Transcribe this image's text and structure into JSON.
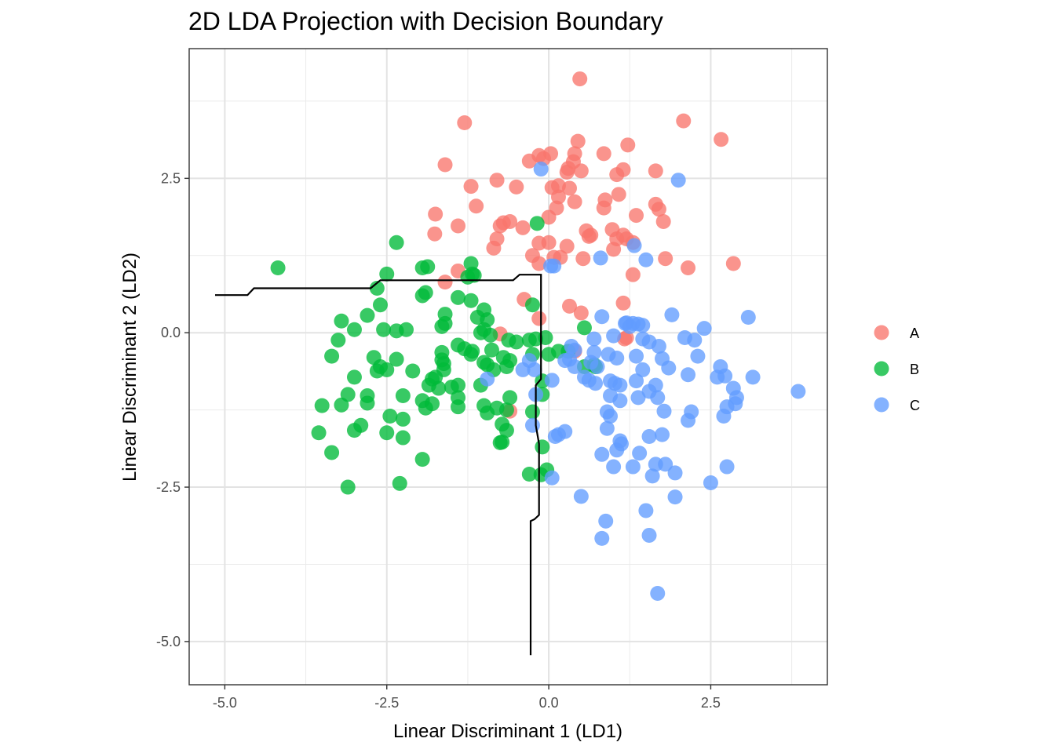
{
  "chart_data": {
    "type": "scatter",
    "title": "2D LDA Projection with Decision Boundary",
    "xlabel": "Linear Discriminant 1 (LD1)",
    "ylabel": "Linear Discriminant 2 (LD2)",
    "xlim": [
      -5.55,
      4.3
    ],
    "ylim": [
      -5.7,
      4.6
    ],
    "xticks": [
      -5.0,
      -2.5,
      0.0,
      2.5
    ],
    "yticks": [
      -5.0,
      -2.5,
      0.0,
      2.5
    ],
    "xtick_labels": [
      "-5.0",
      "-2.5",
      "0.0",
      "2.5"
    ],
    "ytick_labels": [
      "-5.0",
      "-2.5",
      "0.0",
      "2.5"
    ],
    "x_minor": [
      -3.75,
      -1.25,
      1.25,
      3.75
    ],
    "y_minor": [
      -3.75,
      -1.25,
      1.25,
      3.75
    ],
    "grid": true,
    "legend_position": "right",
    "series": [
      {
        "name": "A",
        "color": "#F8766D",
        "points": [
          [
            0.48,
            4.11
          ],
          [
            -1.3,
            3.4
          ],
          [
            2.08,
            3.43
          ],
          [
            2.66,
            3.13
          ],
          [
            0.45,
            3.1
          ],
          [
            1.22,
            3.04
          ],
          [
            0.85,
            2.9
          ],
          [
            0.4,
            2.9
          ],
          [
            -0.15,
            2.87
          ],
          [
            0.03,
            2.9
          ],
          [
            -0.3,
            2.78
          ],
          [
            0.38,
            2.77
          ],
          [
            0.5,
            2.62
          ],
          [
            1.05,
            2.56
          ],
          [
            0.28,
            2.6
          ],
          [
            0.3,
            2.66
          ],
          [
            1.15,
            2.64
          ],
          [
            1.65,
            2.62
          ],
          [
            -1.6,
            2.72
          ],
          [
            -0.8,
            2.47
          ],
          [
            -0.5,
            2.36
          ],
          [
            0.15,
            2.38
          ],
          [
            0.05,
            2.35
          ],
          [
            0.32,
            2.34
          ],
          [
            1.08,
            2.24
          ],
          [
            0.87,
            2.15
          ],
          [
            0.4,
            2.12
          ],
          [
            0.15,
            2.2
          ],
          [
            -1.2,
            2.37
          ],
          [
            -1.12,
            2.05
          ],
          [
            -1.75,
            1.92
          ],
          [
            0.12,
            2.02
          ],
          [
            0.85,
            2.02
          ],
          [
            1.65,
            2.08
          ],
          [
            1.7,
            2.0
          ],
          [
            1.35,
            1.9
          ],
          [
            1.77,
            1.8
          ],
          [
            -0.75,
            1.73
          ],
          [
            -0.7,
            1.78
          ],
          [
            -0.6,
            1.8
          ],
          [
            -1.4,
            1.73
          ],
          [
            -1.76,
            1.6
          ],
          [
            -0.4,
            1.7
          ],
          [
            0.0,
            1.87
          ],
          [
            -0.8,
            1.52
          ],
          [
            -0.85,
            1.37
          ],
          [
            0.28,
            1.4
          ],
          [
            0.65,
            1.58
          ],
          [
            0.62,
            1.56
          ],
          [
            0.98,
            1.67
          ],
          [
            1.15,
            1.58
          ],
          [
            0.08,
            1.22
          ],
          [
            0.18,
            1.22
          ],
          [
            -0.15,
            1.45
          ],
          [
            0.0,
            1.46
          ],
          [
            -0.25,
            1.25
          ],
          [
            -0.15,
            1.12
          ],
          [
            0.53,
            1.2
          ],
          [
            1.0,
            1.35
          ],
          [
            1.05,
            1.52
          ],
          [
            1.3,
            1.46
          ],
          [
            1.2,
            1.52
          ],
          [
            1.8,
            1.2
          ],
          [
            2.15,
            1.05
          ],
          [
            2.85,
            1.12
          ],
          [
            1.3,
            0.94
          ],
          [
            -1.6,
            0.82
          ],
          [
            -1.4,
            1.0
          ],
          [
            -0.38,
            0.54
          ],
          [
            0.32,
            0.43
          ],
          [
            0.5,
            0.32
          ],
          [
            1.15,
            0.48
          ],
          [
            -0.75,
            -0.02
          ],
          [
            -0.15,
            0.23
          ],
          [
            1.2,
            -0.08
          ],
          [
            1.17,
            -0.1
          ],
          [
            0.4,
            -0.3
          ],
          [
            -0.6,
            -1.27
          ],
          [
            0.58,
            1.65
          ],
          [
            -0.08,
            2.82
          ]
        ]
      },
      {
        "name": "B",
        "color": "#00BA38",
        "points": [
          [
            -4.18,
            1.05
          ],
          [
            -2.35,
            1.46
          ],
          [
            -1.2,
            1.12
          ],
          [
            -1.95,
            1.05
          ],
          [
            -1.87,
            1.07
          ],
          [
            -2.5,
            0.95
          ],
          [
            -1.18,
            0.95
          ],
          [
            -1.25,
            0.9
          ],
          [
            -1.15,
            0.93
          ],
          [
            -2.65,
            0.72
          ],
          [
            -1.95,
            0.6
          ],
          [
            -1.9,
            0.65
          ],
          [
            -1.4,
            0.57
          ],
          [
            -2.6,
            0.45
          ],
          [
            -2.8,
            0.28
          ],
          [
            -3.2,
            0.19
          ],
          [
            -1.6,
            0.3
          ],
          [
            -1.6,
            0.15
          ],
          [
            -1.2,
            0.52
          ],
          [
            -1.0,
            0.37
          ],
          [
            -1.1,
            0.25
          ],
          [
            -0.95,
            0.21
          ],
          [
            -1.65,
            0.1
          ],
          [
            -3.0,
            0.05
          ],
          [
            -2.55,
            0.05
          ],
          [
            -2.35,
            0.03
          ],
          [
            -2.2,
            0.05
          ],
          [
            -1.0,
            0.05
          ],
          [
            -1.05,
            0.0
          ],
          [
            -0.9,
            -0.04
          ],
          [
            -3.25,
            -0.12
          ],
          [
            -1.4,
            -0.2
          ],
          [
            -1.3,
            -0.26
          ],
          [
            -1.18,
            -0.3
          ],
          [
            -0.88,
            -0.28
          ],
          [
            -1.65,
            -0.32
          ],
          [
            -1.2,
            -0.35
          ],
          [
            -3.35,
            -0.38
          ],
          [
            -2.7,
            -0.4
          ],
          [
            -2.35,
            -0.43
          ],
          [
            -0.5,
            -0.15
          ],
          [
            -0.62,
            -0.12
          ],
          [
            -0.3,
            -0.12
          ],
          [
            -0.2,
            -0.1
          ],
          [
            -0.05,
            -0.08
          ],
          [
            -1.65,
            -0.44
          ],
          [
            -1.62,
            -0.5
          ],
          [
            -1.0,
            -0.48
          ],
          [
            -0.95,
            -0.52
          ],
          [
            -0.6,
            -0.45
          ],
          [
            -0.25,
            -0.35
          ],
          [
            0.0,
            -0.35
          ],
          [
            0.15,
            -0.3
          ],
          [
            0.3,
            -0.3
          ],
          [
            0.55,
            0.08
          ],
          [
            -0.7,
            -0.4
          ],
          [
            -2.6,
            -0.55
          ],
          [
            -2.5,
            -0.6
          ],
          [
            -2.1,
            -0.62
          ],
          [
            -1.62,
            -0.6
          ],
          [
            -0.85,
            -0.6
          ],
          [
            -0.65,
            -0.55
          ],
          [
            0.55,
            -0.55
          ],
          [
            0.7,
            -0.52
          ],
          [
            0.72,
            -0.55
          ],
          [
            -2.65,
            -0.62
          ],
          [
            -3.0,
            -0.72
          ],
          [
            -1.8,
            -0.75
          ],
          [
            -1.75,
            -0.72
          ],
          [
            -1.85,
            -0.85
          ],
          [
            -1.7,
            -0.9
          ],
          [
            -1.5,
            -0.88
          ],
          [
            -1.4,
            -0.85
          ],
          [
            -1.05,
            -0.85
          ],
          [
            -0.1,
            -0.78
          ],
          [
            -2.8,
            -1.02
          ],
          [
            -3.1,
            -1.0
          ],
          [
            -2.25,
            -1.02
          ],
          [
            -1.95,
            -1.1
          ],
          [
            -1.8,
            -1.15
          ],
          [
            -1.9,
            -1.22
          ],
          [
            -1.4,
            -1.05
          ],
          [
            -1.0,
            -1.18
          ],
          [
            -0.6,
            -1.05
          ],
          [
            -0.1,
            -1.0
          ],
          [
            -0.8,
            -1.22
          ],
          [
            -0.65,
            -1.25
          ],
          [
            -0.25,
            -1.28
          ],
          [
            -3.5,
            -1.18
          ],
          [
            -3.2,
            -1.17
          ],
          [
            -2.8,
            -1.14
          ],
          [
            -2.45,
            -1.35
          ],
          [
            -2.25,
            -1.4
          ],
          [
            -1.4,
            -1.2
          ],
          [
            -0.95,
            -1.3
          ],
          [
            -0.72,
            -1.48
          ],
          [
            -0.65,
            -1.58
          ],
          [
            -3.55,
            -1.62
          ],
          [
            -3.0,
            -1.58
          ],
          [
            -2.9,
            -1.5
          ],
          [
            -2.5,
            -1.62
          ],
          [
            -2.25,
            -1.7
          ],
          [
            -0.72,
            -1.77
          ],
          [
            -0.75,
            -1.78
          ],
          [
            -0.1,
            -1.85
          ],
          [
            -3.35,
            -1.94
          ],
          [
            -1.95,
            -2.05
          ],
          [
            -0.3,
            -2.29
          ],
          [
            -0.12,
            -2.3
          ],
          [
            -0.03,
            -2.22
          ],
          [
            -3.1,
            -2.5
          ],
          [
            -2.3,
            -2.44
          ],
          [
            -0.25,
            0.45
          ],
          [
            -0.18,
            1.77
          ]
        ]
      },
      {
        "name": "C",
        "color": "#619CFF",
        "points": [
          [
            -0.12,
            2.65
          ],
          [
            2.0,
            2.47
          ],
          [
            0.8,
            1.21
          ],
          [
            1.32,
            1.41
          ],
          [
            1.5,
            1.18
          ],
          [
            0.03,
            1.08
          ],
          [
            0.08,
            1.08
          ],
          [
            3.08,
            0.25
          ],
          [
            0.82,
            0.26
          ],
          [
            1.9,
            0.29
          ],
          [
            1.18,
            0.15
          ],
          [
            1.2,
            0.16
          ],
          [
            1.3,
            0.15
          ],
          [
            1.38,
            0.14
          ],
          [
            1.45,
            0.12
          ],
          [
            1.25,
            0.1
          ],
          [
            2.4,
            0.07
          ],
          [
            2.1,
            -0.08
          ],
          [
            2.25,
            -0.12
          ],
          [
            0.7,
            -0.1
          ],
          [
            1.0,
            -0.05
          ],
          [
            1.45,
            -0.1
          ],
          [
            1.55,
            -0.15
          ],
          [
            1.7,
            -0.22
          ],
          [
            0.35,
            -0.22
          ],
          [
            0.4,
            -0.28
          ],
          [
            0.7,
            -0.32
          ],
          [
            0.25,
            -0.45
          ],
          [
            0.32,
            -0.43
          ],
          [
            0.92,
            -0.35
          ],
          [
            1.05,
            -0.41
          ],
          [
            1.35,
            -0.38
          ],
          [
            1.75,
            -0.42
          ],
          [
            2.3,
            -0.38
          ],
          [
            -0.3,
            -0.45
          ],
          [
            -0.4,
            -0.6
          ],
          [
            -0.22,
            -0.6
          ],
          [
            0.4,
            -0.55
          ],
          [
            0.65,
            -0.48
          ],
          [
            0.75,
            -0.55
          ],
          [
            1.45,
            -0.6
          ],
          [
            1.85,
            -0.57
          ],
          [
            2.15,
            -0.68
          ],
          [
            2.65,
            -0.55
          ],
          [
            2.72,
            -0.7
          ],
          [
            2.6,
            -0.72
          ],
          [
            3.15,
            -0.72
          ],
          [
            3.85,
            -0.95
          ],
          [
            0.55,
            -0.72
          ],
          [
            0.62,
            -0.77
          ],
          [
            0.72,
            -0.82
          ],
          [
            0.95,
            -0.78
          ],
          [
            1.02,
            -0.82
          ],
          [
            1.1,
            -0.85
          ],
          [
            1.35,
            -0.78
          ],
          [
            1.65,
            -0.85
          ],
          [
            1.55,
            -0.95
          ],
          [
            2.85,
            -0.9
          ],
          [
            2.9,
            -1.05
          ],
          [
            2.88,
            -1.15
          ],
          [
            -0.2,
            -1.0
          ],
          [
            0.05,
            -0.77
          ],
          [
            -0.95,
            -0.75
          ],
          [
            0.95,
            -1.02
          ],
          [
            1.1,
            -1.1
          ],
          [
            1.38,
            -1.05
          ],
          [
            1.68,
            -1.05
          ],
          [
            2.75,
            -1.2
          ],
          [
            2.7,
            -1.35
          ],
          [
            0.9,
            -1.28
          ],
          [
            0.95,
            -1.35
          ],
          [
            1.78,
            -1.27
          ],
          [
            2.2,
            -1.28
          ],
          [
            2.15,
            -1.42
          ],
          [
            0.9,
            -1.55
          ],
          [
            0.15,
            -1.65
          ],
          [
            0.1,
            -1.68
          ],
          [
            0.25,
            -1.6
          ],
          [
            1.1,
            -1.75
          ],
          [
            1.55,
            -1.68
          ],
          [
            1.75,
            -1.65
          ],
          [
            1.12,
            -1.8
          ],
          [
            1.05,
            -1.9
          ],
          [
            -0.25,
            -1.5
          ],
          [
            0.82,
            -1.97
          ],
          [
            1.4,
            -1.95
          ],
          [
            1.0,
            -2.17
          ],
          [
            1.3,
            -2.17
          ],
          [
            1.65,
            -2.13
          ],
          [
            1.8,
            -2.13
          ],
          [
            1.95,
            -2.27
          ],
          [
            1.6,
            -2.32
          ],
          [
            2.75,
            -2.17
          ],
          [
            2.5,
            -2.43
          ],
          [
            0.05,
            -2.35
          ],
          [
            0.5,
            -2.65
          ],
          [
            1.95,
            -2.66
          ],
          [
            1.5,
            -2.88
          ],
          [
            0.88,
            -3.05
          ],
          [
            0.82,
            -3.33
          ],
          [
            1.55,
            -3.28
          ],
          [
            1.68,
            -4.22
          ]
        ]
      }
    ],
    "decision_boundary": [
      [
        -5.15,
        0.61
      ],
      [
        -4.65,
        0.61
      ],
      [
        -4.55,
        0.72
      ],
      [
        -2.75,
        0.72
      ],
      [
        -2.6,
        0.85
      ],
      [
        -0.55,
        0.85
      ],
      [
        -0.45,
        0.94
      ],
      [
        -0.12,
        0.94
      ],
      [
        -0.12,
        -0.75
      ],
      [
        -0.2,
        -0.85
      ],
      [
        -0.2,
        -1.5
      ],
      [
        -0.15,
        -1.8
      ],
      [
        -0.15,
        -2.95
      ],
      [
        -0.22,
        -3.02
      ],
      [
        -0.28,
        -3.05
      ],
      [
        -0.28,
        -5.22
      ]
    ]
  }
}
